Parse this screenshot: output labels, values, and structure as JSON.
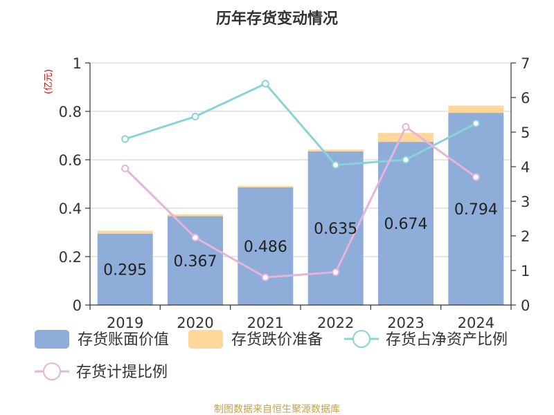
{
  "chart_data": {
    "title": "历年存货变动情况",
    "unit_label": "(亿元)",
    "source": "制图数据来自恒生聚源数据库",
    "categories": [
      "2019",
      "2020",
      "2021",
      "2022",
      "2023",
      "2024"
    ],
    "left_axis": {
      "min": 0,
      "max": 1,
      "ticks": [
        "0",
        "0.2",
        "0.4",
        "0.6",
        "0.8",
        "1"
      ]
    },
    "right_axis": {
      "min": 0,
      "max": 7,
      "ticks": [
        "0",
        "1",
        "2",
        "3",
        "4",
        "5",
        "6",
        "7"
      ]
    },
    "series": [
      {
        "name": "存货账面价值",
        "type": "bar",
        "stack": "inv",
        "axis": "left",
        "color": "#8eadd9",
        "values": [
          0.295,
          0.367,
          0.486,
          0.635,
          0.674,
          0.794
        ],
        "labels": [
          "0.295",
          "0.367",
          "0.486",
          "0.635",
          "0.674",
          "0.794"
        ]
      },
      {
        "name": "存货跌价准备",
        "type": "bar",
        "stack": "inv",
        "axis": "left",
        "color": "#fdd89a",
        "values": [
          0.012,
          0.008,
          0.006,
          0.007,
          0.037,
          0.03
        ]
      },
      {
        "name": "存货占净资产比例",
        "type": "line",
        "axis": "right",
        "color": "#88d3d6",
        "values": [
          4.8,
          5.45,
          6.4,
          4.05,
          4.2,
          5.25
        ]
      },
      {
        "name": "存货计提比例",
        "type": "line",
        "axis": "right",
        "color": "#e5b3db",
        "values": [
          3.95,
          1.95,
          0.8,
          0.95,
          5.15,
          3.7
        ]
      }
    ],
    "grid": true
  }
}
